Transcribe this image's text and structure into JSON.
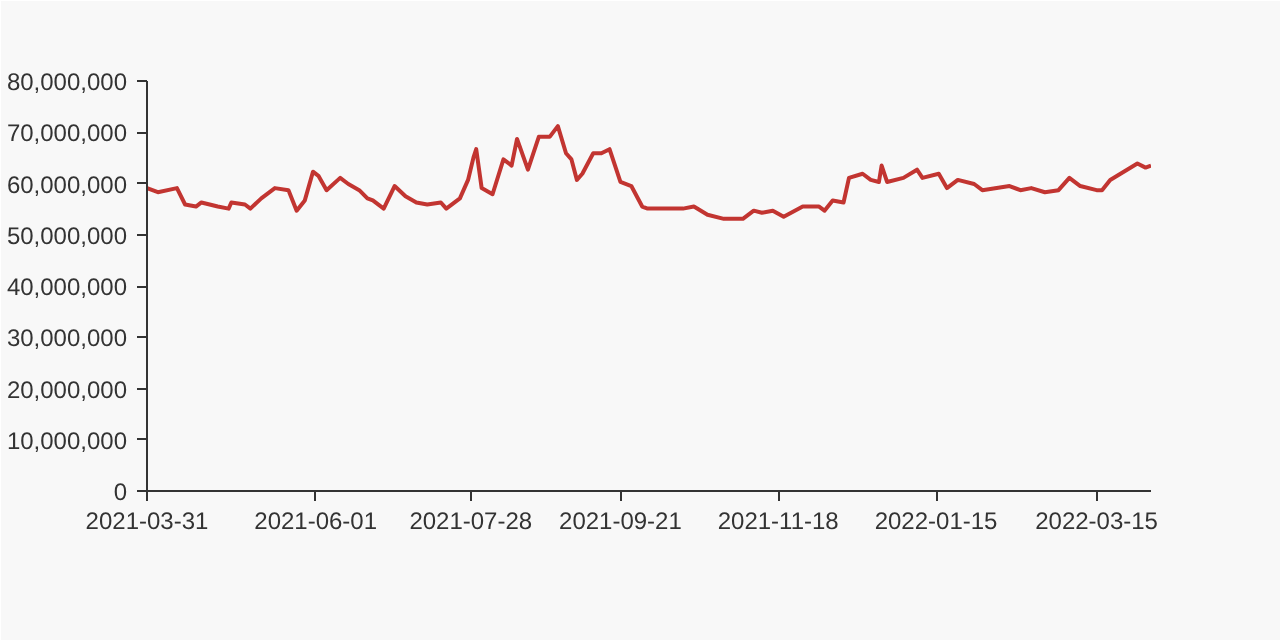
{
  "chart_data": {
    "type": "line",
    "color": "#c23531",
    "grid": false,
    "marker": "none",
    "line_style": "solid",
    "x": [
      "2021-03-31",
      "2021-04-04",
      "2021-04-11",
      "2021-04-14",
      "2021-04-18",
      "2021-04-20",
      "2021-04-26",
      "2021-04-30",
      "2021-05-01",
      "2021-05-06",
      "2021-05-08",
      "2021-05-12",
      "2021-05-17",
      "2021-05-22",
      "2021-05-25",
      "2021-05-28",
      "2021-05-31",
      "2021-06-02",
      "2021-06-05",
      "2021-06-10",
      "2021-06-13",
      "2021-06-17",
      "2021-06-20",
      "2021-06-22",
      "2021-06-26",
      "2021-06-30",
      "2021-07-04",
      "2021-07-08",
      "2021-07-12",
      "2021-07-17",
      "2021-07-19",
      "2021-07-24",
      "2021-07-27",
      "2021-07-29",
      "2021-07-30",
      "2021-08-01",
      "2021-08-05",
      "2021-08-09",
      "2021-08-12",
      "2021-08-14",
      "2021-08-18",
      "2021-08-22",
      "2021-08-26",
      "2021-08-29",
      "2021-09-01",
      "2021-09-03",
      "2021-09-05",
      "2021-09-07",
      "2021-09-11",
      "2021-09-14",
      "2021-09-17",
      "2021-09-21",
      "2021-09-25",
      "2021-09-29",
      "2021-10-01",
      "2021-10-14",
      "2021-10-18",
      "2021-10-23",
      "2021-10-29",
      "2021-11-05",
      "2021-11-09",
      "2021-11-12",
      "2021-11-16",
      "2021-11-20",
      "2021-11-27",
      "2021-12-03",
      "2021-12-05",
      "2021-12-08",
      "2021-12-12",
      "2021-12-14",
      "2021-12-19",
      "2021-12-22",
      "2021-12-25",
      "2021-12-26",
      "2021-12-28",
      "2022-01-03",
      "2022-01-08",
      "2022-01-10",
      "2022-01-16",
      "2022-01-19",
      "2022-01-23",
      "2022-01-29",
      "2022-02-01",
      "2022-02-11",
      "2022-02-15",
      "2022-02-19",
      "2022-02-24",
      "2022-03-01",
      "2022-03-05",
      "2022-03-09",
      "2022-03-15",
      "2022-03-17",
      "2022-03-20",
      "2022-03-25",
      "2022-03-30",
      "2022-04-02",
      "2022-04-04"
    ],
    "values": [
      59100000,
      58300000,
      59100000,
      55900000,
      55500000,
      56300000,
      55500000,
      55100000,
      56300000,
      55900000,
      55100000,
      57100000,
      59100000,
      58700000,
      54700000,
      56700000,
      62300000,
      61500000,
      58700000,
      61100000,
      59900000,
      58700000,
      57100000,
      56700000,
      55100000,
      59500000,
      57500000,
      56300000,
      55900000,
      56300000,
      55100000,
      57100000,
      60700000,
      65100000,
      66700000,
      59100000,
      57900000,
      64700000,
      63500000,
      68700000,
      62700000,
      69100000,
      69100000,
      71200000,
      65900000,
      64700000,
      60700000,
      61900000,
      65900000,
      65900000,
      66700000,
      60300000,
      59500000,
      55500000,
      55100000,
      55100000,
      55500000,
      53900000,
      53100000,
      53100000,
      54700000,
      54300000,
      54700000,
      53500000,
      55500000,
      55500000,
      54700000,
      56700000,
      56300000,
      61100000,
      61900000,
      60700000,
      60300000,
      63500000,
      60300000,
      61100000,
      62700000,
      61100000,
      61900000,
      59100000,
      60700000,
      59900000,
      58700000,
      59500000,
      58700000,
      59100000,
      58300000,
      58700000,
      61100000,
      59500000,
      58700000,
      58700000,
      60700000,
      62300000,
      63900000,
      63100000,
      63500000
    ],
    "xlim": [
      "2021-03-31",
      "2022-04-04"
    ],
    "xticks": [
      "2021-03-31",
      "2021-06-01",
      "2021-07-28",
      "2021-09-21",
      "2021-11-18",
      "2022-01-15",
      "2022-03-15"
    ],
    "ylim": [
      0,
      80000000
    ],
    "yticks": [
      {
        "value": 0,
        "label": "0"
      },
      {
        "value": 10000000,
        "label": "10,000,000"
      },
      {
        "value": 20000000,
        "label": "20,000,000"
      },
      {
        "value": 30000000,
        "label": "30,000,000"
      },
      {
        "value": 40000000,
        "label": "40,000,000"
      },
      {
        "value": 50000000,
        "label": "50,000,000"
      },
      {
        "value": 60000000,
        "label": "60,000,000"
      },
      {
        "value": 70000000,
        "label": "70,000,000"
      },
      {
        "value": 80000000,
        "label": "80,000,000"
      }
    ]
  }
}
